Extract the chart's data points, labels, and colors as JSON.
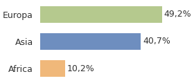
{
  "categories": [
    "Africa",
    "Asia",
    "Europa"
  ],
  "values": [
    10.2,
    40.7,
    49.2
  ],
  "labels": [
    "10,2%",
    "40,7%",
    "49,2%"
  ],
  "bar_colors": [
    "#f0b87a",
    "#6e8ebf",
    "#b5c98e"
  ],
  "background_color": "#ffffff",
  "xlim": [
    0,
    60
  ],
  "label_fontsize": 9,
  "tick_fontsize": 9
}
